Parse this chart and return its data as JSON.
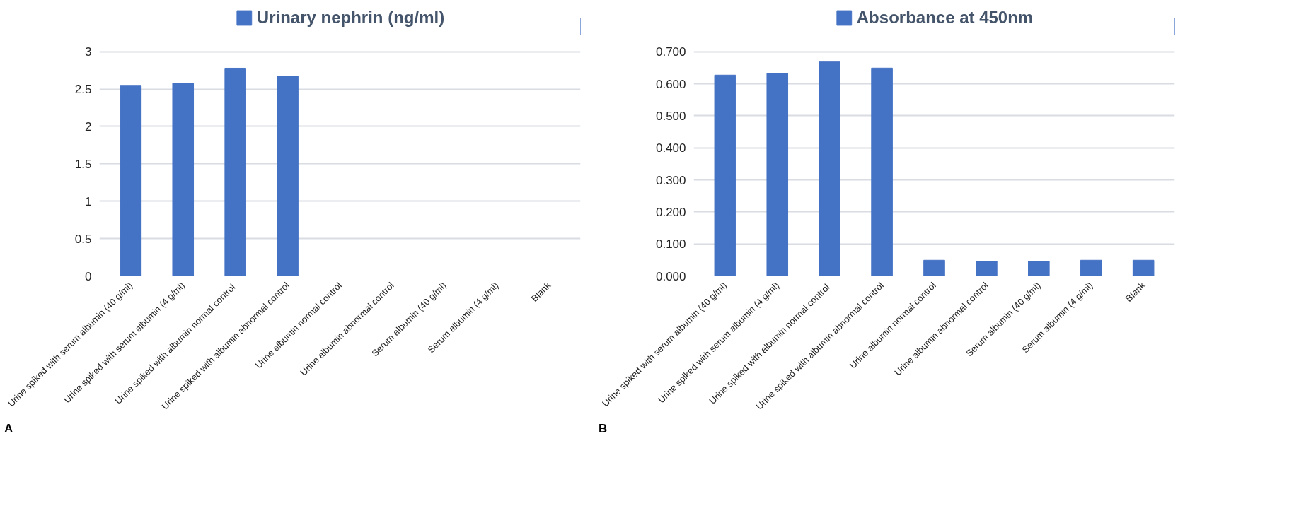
{
  "chart_data": [
    {
      "type": "bar",
      "categories": [
        "Urine spiked with serum albumin (40 g/ml)",
        "Urine spiked with serum albumin (4 g/ml)",
        "Urine  spiked with albumin normal control",
        "Urine spiked with albumin abnormal control",
        "Urine albumin normal control",
        "Urine albumin abnormal control",
        "Serum albumin (40 g/ml)",
        "Serum albumin (4 g/ml)",
        "Blank"
      ],
      "series": [
        {
          "name": "Urinary nephrin (ng/ml)",
          "color": "#4472c4",
          "values": [
            2.55,
            2.58,
            2.78,
            2.67,
            0,
            0,
            0,
            0,
            0
          ]
        }
      ],
      "ylim": [
        0,
        3
      ],
      "yticks": [
        0,
        0.5,
        1,
        1.5,
        2,
        2.5,
        3
      ],
      "grid": "y",
      "legend": "top",
      "annotations": [
        "A"
      ]
    },
    {
      "type": "bar",
      "categories": [
        "Urine spiked with serum albumin (40 g/ml)",
        "Urine spiked with serum albumin (4 g/ml)",
        "Urine  spiked with albumin normal control",
        "Urine spiked with albumin abnormal control",
        "Urine albumin normal control",
        "Urine albumin abnormal control",
        "Serum albumin (40 g/ml)",
        "Serum albumin (4 g/ml)",
        "Blank"
      ],
      "series": [
        {
          "name": "Absorbance at 450nm",
          "color": "#4472c4",
          "values": [
            0.627,
            0.633,
            0.668,
            0.649,
            0.049,
            0.046,
            0.046,
            0.049,
            0.049
          ]
        }
      ],
      "ylim": [
        0,
        0.7
      ],
      "yticks": [
        {
          "value": 0,
          "label": "0.000"
        },
        {
          "value": 0.1,
          "label": "0.100"
        },
        {
          "value": 0.2,
          "label": "0.200"
        },
        {
          "value": 0.3,
          "label": "0.300"
        },
        {
          "value": 0.4,
          "label": "0.400"
        },
        {
          "value": 0.5,
          "label": "0.500"
        },
        {
          "value": 0.6,
          "label": "0.600"
        },
        {
          "value": 0.7,
          "label": "0.700"
        }
      ],
      "grid": "y",
      "legend": "top",
      "annotations": [
        "B"
      ]
    }
  ]
}
